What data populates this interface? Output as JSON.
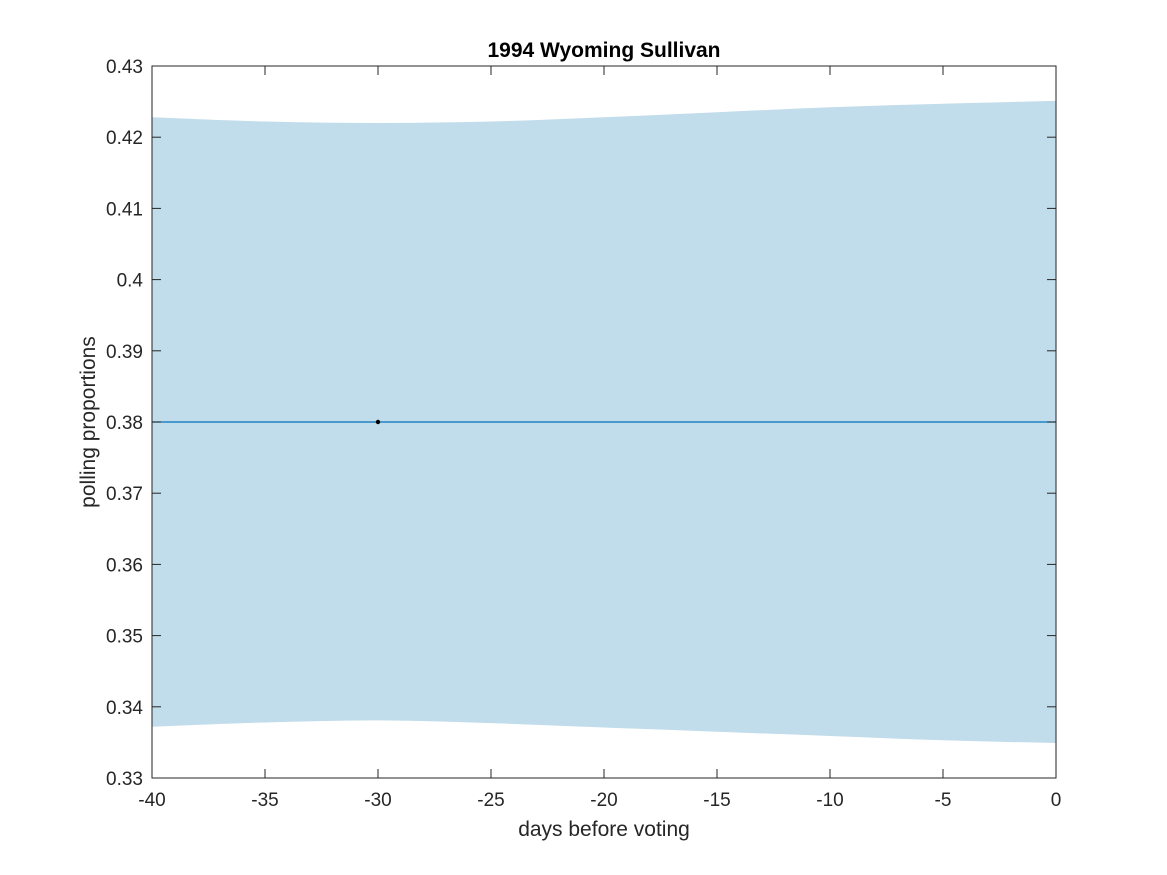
{
  "chart_data": {
    "type": "line",
    "title": "1994 Wyoming Sullivan",
    "xlabel": "days before voting",
    "ylabel": "polling proportions",
    "xlim": [
      -40,
      0
    ],
    "ylim": [
      0.33,
      0.43
    ],
    "xticks": [
      -40,
      -35,
      -30,
      -25,
      -20,
      -15,
      -10,
      -5,
      0
    ],
    "xtick_labels": [
      "-40",
      "-35",
      "-30",
      "-25",
      "-20",
      "-15",
      "-10",
      "-5",
      "0"
    ],
    "yticks": [
      0.33,
      0.34,
      0.35,
      0.36,
      0.37,
      0.38,
      0.39,
      0.4,
      0.41,
      0.42,
      0.43
    ],
    "ytick_labels": [
      "0.33",
      "0.34",
      "0.35",
      "0.36",
      "0.37",
      "0.38",
      "0.39",
      "0.4",
      "0.41",
      "0.42",
      "0.43"
    ],
    "grid": false,
    "band": {
      "color": "#c1dceb",
      "x": [
        -40,
        -35,
        -30,
        -25,
        -20,
        -15,
        -10,
        -5,
        0
      ],
      "upper": [
        0.4228,
        0.4222,
        0.422,
        0.4222,
        0.4228,
        0.4235,
        0.4242,
        0.4247,
        0.4251
      ],
      "lower": [
        0.3372,
        0.3378,
        0.3381,
        0.3377,
        0.3371,
        0.3365,
        0.3359,
        0.3353,
        0.3349
      ]
    },
    "mean_line": {
      "color": "#0072bd",
      "x": [
        -40,
        0
      ],
      "y": [
        0.38,
        0.38
      ]
    },
    "points": [
      {
        "x": -30,
        "y": 0.38,
        "color": "#000000"
      }
    ]
  }
}
